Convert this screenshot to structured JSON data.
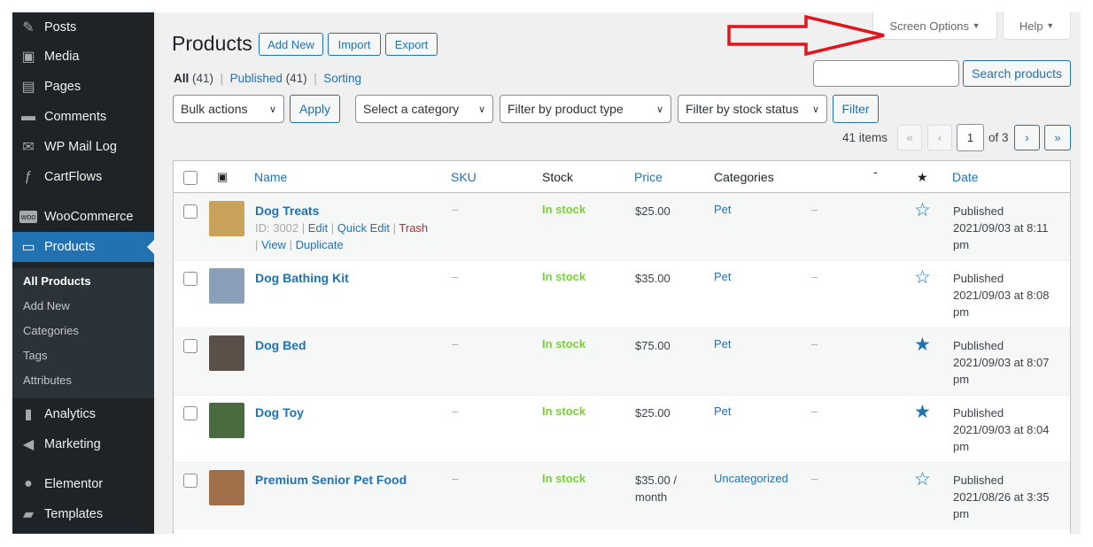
{
  "sidebar": {
    "items": [
      {
        "label": "Posts",
        "icon": "pin-icon"
      },
      {
        "label": "Media",
        "icon": "media-icon"
      },
      {
        "label": "Pages",
        "icon": "pages-icon"
      },
      {
        "label": "Comments",
        "icon": "comment-icon"
      },
      {
        "label": "WP Mail Log",
        "icon": "mail-icon"
      },
      {
        "label": "CartFlows",
        "icon": "cartflows-icon"
      },
      {
        "label": "WooCommerce",
        "icon": "woo-icon"
      },
      {
        "label": "Products",
        "icon": "archive-icon"
      },
      {
        "label": "Analytics",
        "icon": "chart-icon"
      },
      {
        "label": "Marketing",
        "icon": "megaphone-icon"
      },
      {
        "label": "Elementor",
        "icon": "elementor-icon"
      },
      {
        "label": "Templates",
        "icon": "folder-icon"
      }
    ],
    "submenu": [
      "All Products",
      "Add New",
      "Categories",
      "Tags",
      "Attributes"
    ]
  },
  "header": {
    "title": "Products",
    "add_new": "Add New",
    "import": "Import",
    "export": "Export",
    "screen_options": "Screen Options",
    "help": "Help"
  },
  "views": {
    "all": "All",
    "all_count": "(41)",
    "published": "Published",
    "published_count": "(41)",
    "sorting": "Sorting"
  },
  "search": {
    "value": "",
    "button": "Search products"
  },
  "filters": {
    "bulk": "Bulk actions",
    "apply": "Apply",
    "category": "Select a category",
    "type": "Filter by product type",
    "stock": "Filter by stock status",
    "filter": "Filter"
  },
  "pagination": {
    "items": "41 items",
    "first": "«",
    "prev": "‹",
    "page": "1",
    "of": "of 3",
    "next": "›",
    "last": "»"
  },
  "columns": {
    "name": "Name",
    "sku": "SKU",
    "stock": "Stock",
    "price": "Price",
    "categories": "Categories",
    "tags": "-",
    "date": "Date"
  },
  "colors": {
    "accent": "#2271b1",
    "instock": "#7ad03a",
    "sidebar": "#1d2327",
    "arrow": "#e0161e"
  },
  "rows": [
    {
      "name": "Dog Treats",
      "sku": "–",
      "stock": "In stock",
      "price": "$25.00",
      "category": "Pet",
      "tags": "–",
      "featured": false,
      "status": "Published",
      "date": "2021/09/03 at 8:11",
      "ampm": "pm",
      "id": "ID: 3002",
      "edit": "Edit",
      "quick": "Quick Edit",
      "trash": "Trash",
      "view": "View",
      "dup": "Duplicate",
      "thumb": "#c9a25a"
    },
    {
      "name": "Dog Bathing Kit",
      "sku": "–",
      "stock": "In stock",
      "price": "$35.00",
      "category": "Pet",
      "tags": "–",
      "featured": false,
      "status": "Published",
      "date": "2021/09/03 at 8:08",
      "ampm": "pm",
      "thumb": "#8aa0b8"
    },
    {
      "name": "Dog Bed",
      "sku": "–",
      "stock": "In stock",
      "price": "$75.00",
      "category": "Pet",
      "tags": "–",
      "featured": true,
      "status": "Published",
      "date": "2021/09/03 at 8:07",
      "ampm": "pm",
      "thumb": "#5a5048"
    },
    {
      "name": "Dog Toy",
      "sku": "–",
      "stock": "In stock",
      "price": "$25.00",
      "category": "Pet",
      "tags": "–",
      "featured": true,
      "status": "Published",
      "date": "2021/09/03 at 8:04",
      "ampm": "pm",
      "thumb": "#4a6a40"
    },
    {
      "name": "Premium Senior Pet Food",
      "sku": "–",
      "stock": "In stock",
      "price": "$35.00 /",
      "price2": "month",
      "category": "Uncategorized",
      "tags": "–",
      "featured": false,
      "status": "Published",
      "date": "2021/08/26 at 3:35",
      "ampm": "pm",
      "thumb": "#a0704a"
    }
  ]
}
